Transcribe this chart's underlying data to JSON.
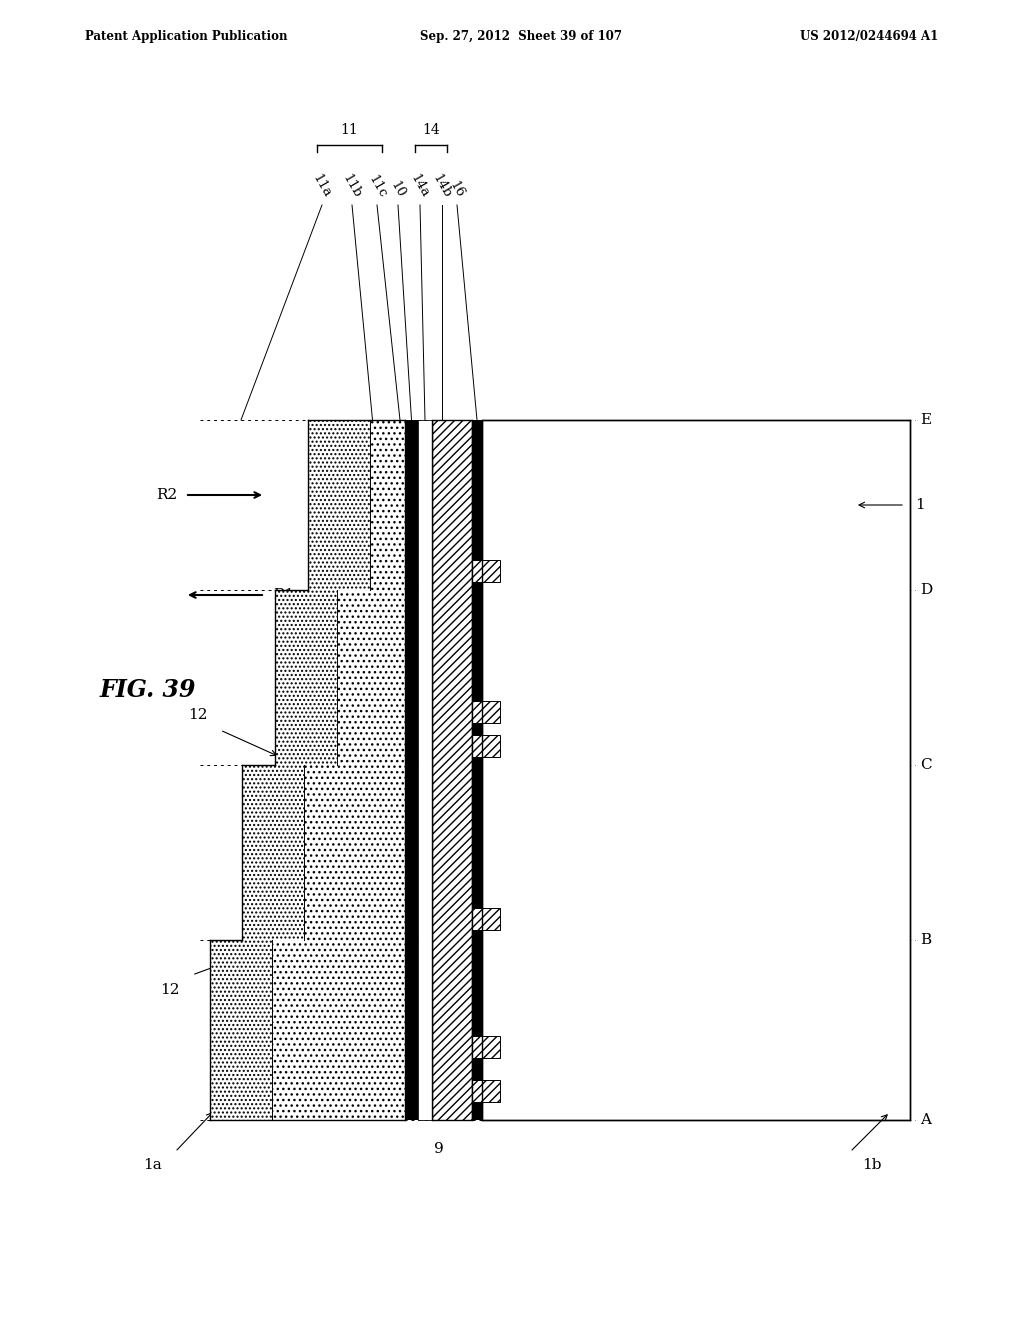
{
  "header_left": "Patent Application Publication",
  "header_mid": "Sep. 27, 2012  Sheet 39 of 107",
  "header_right": "US 2012/0244694 A1",
  "fig_label": "FIG. 39",
  "bg_color": "#ffffff"
}
